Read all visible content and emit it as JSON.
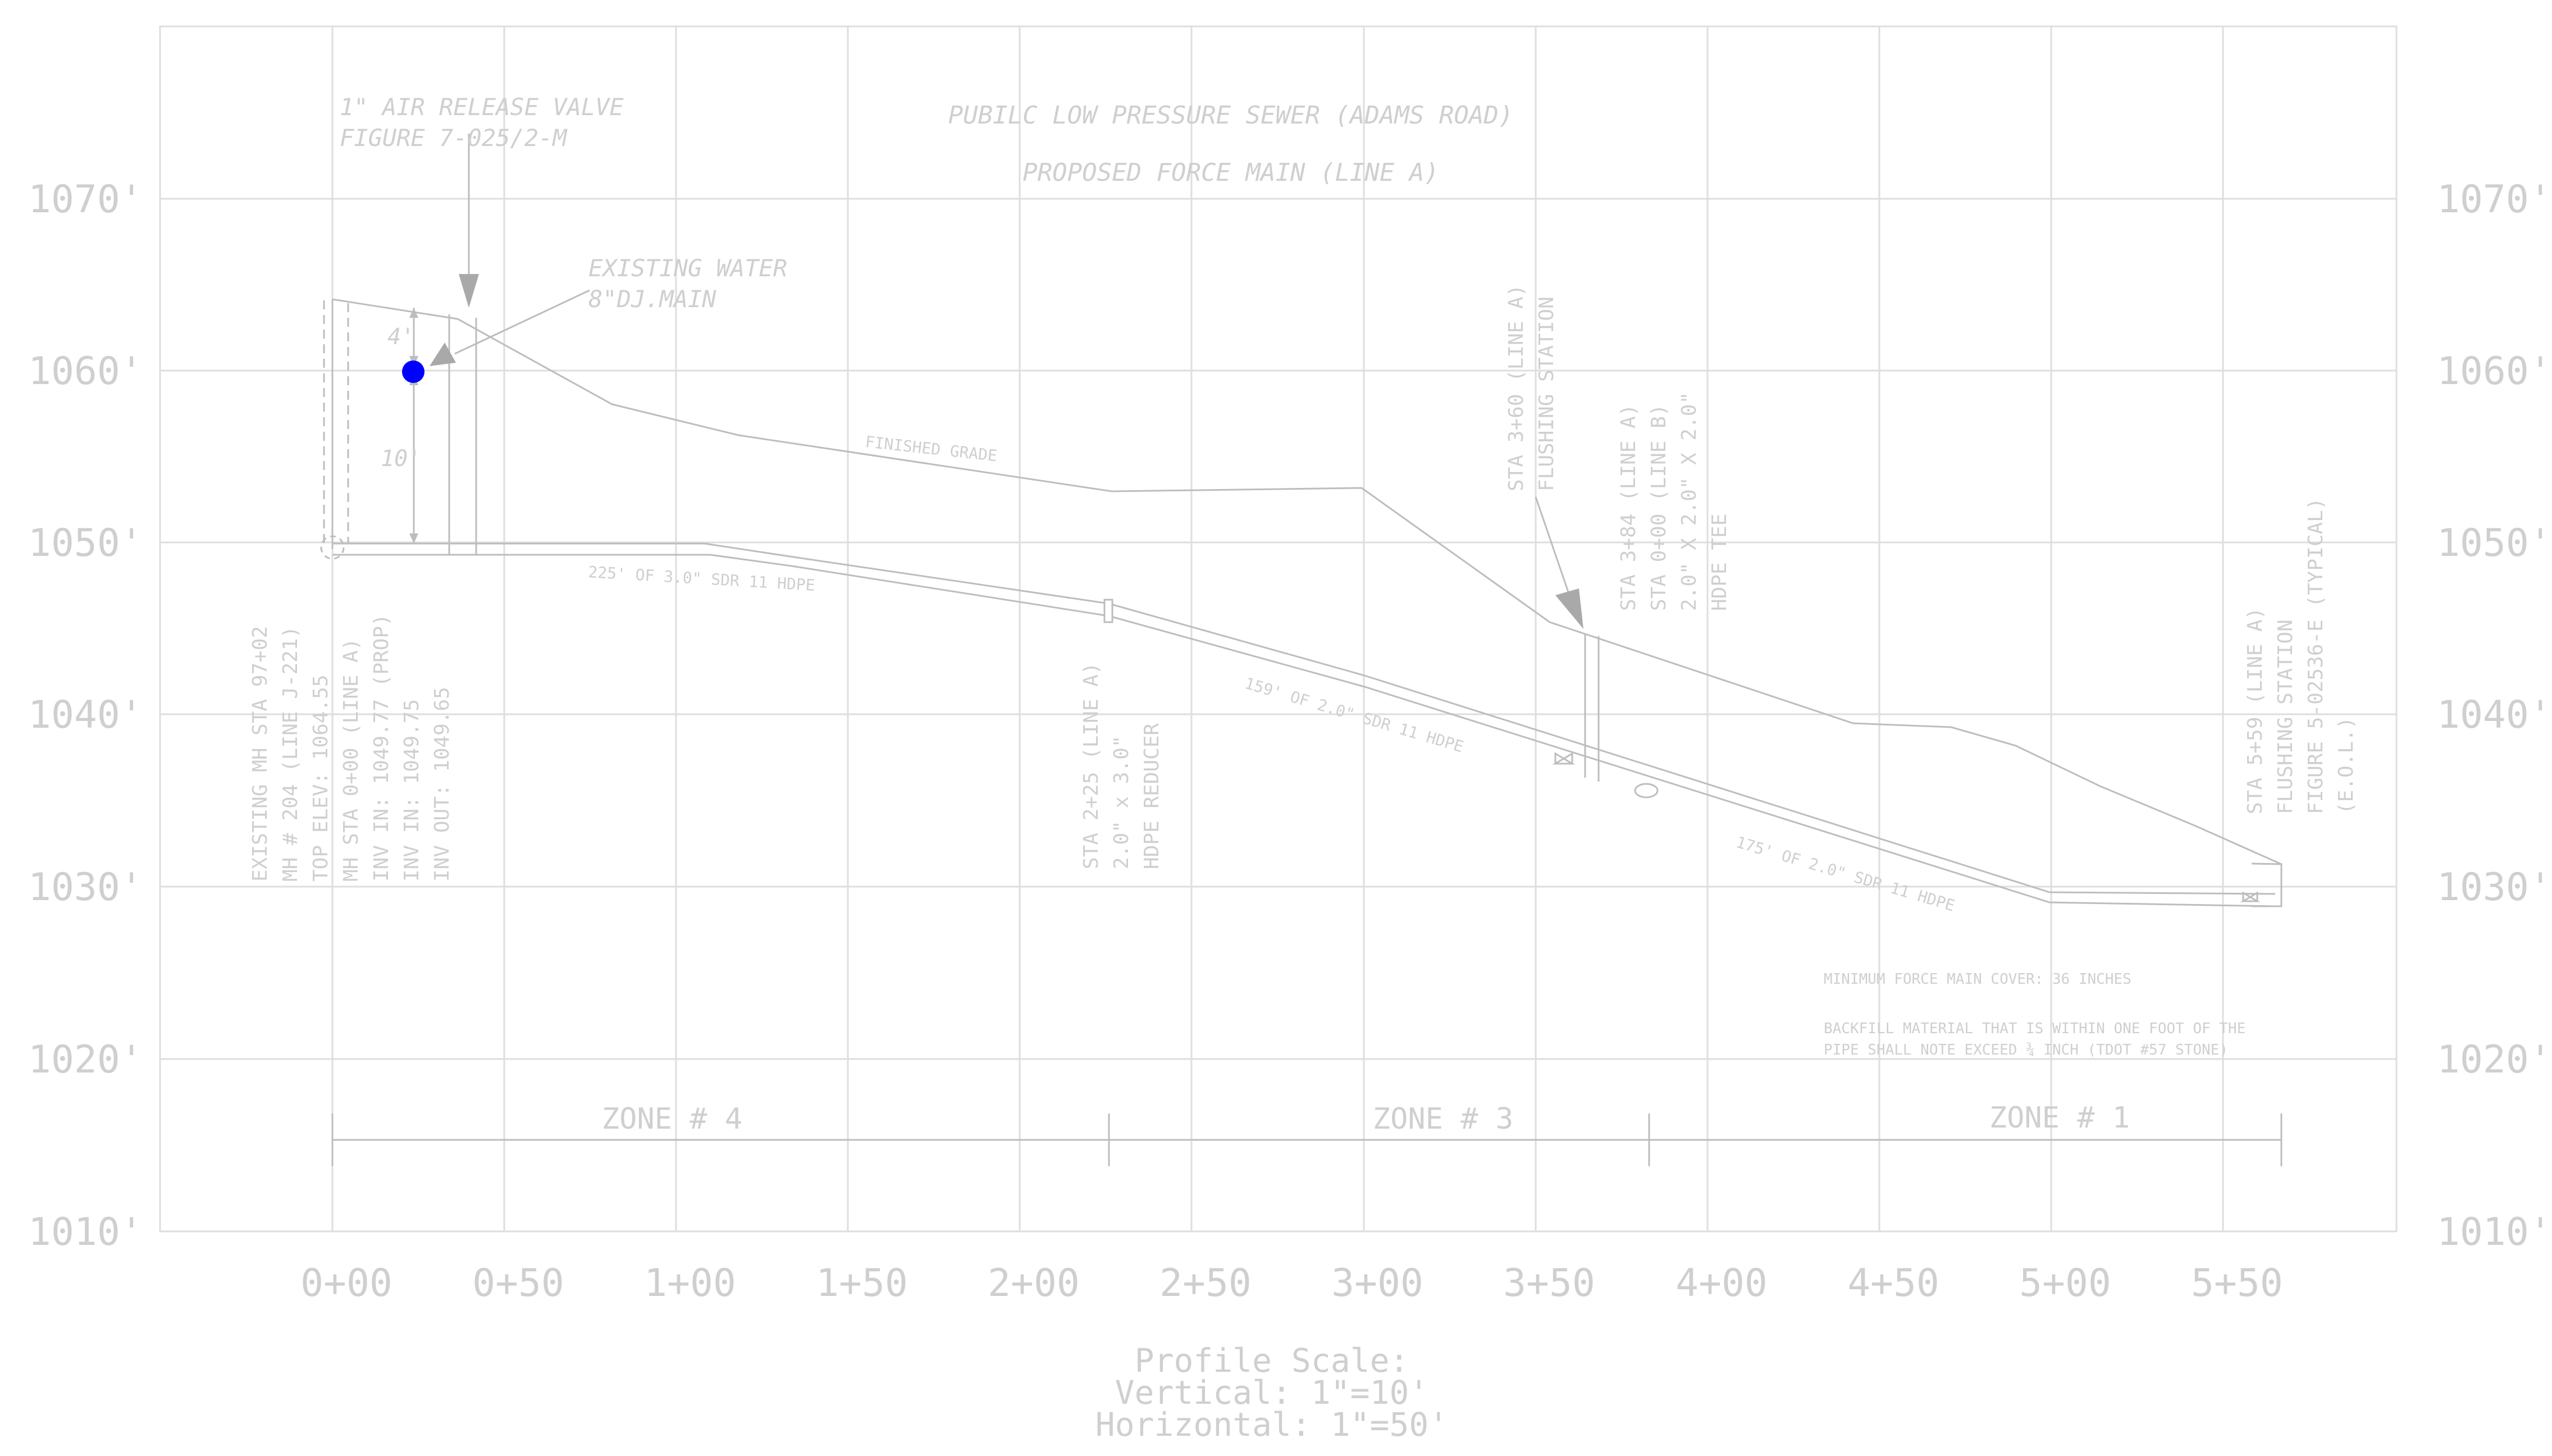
{
  "elevation_labels": [
    "1070'",
    "1060'",
    "1050'",
    "1040'",
    "1030'",
    "1020'",
    "1010'"
  ],
  "station_labels": [
    "0+00",
    "0+50",
    "1+00",
    "1+50",
    "2+00",
    "2+50",
    "3+00",
    "3+50",
    "4+00",
    "4+50",
    "5+00",
    "5+50"
  ],
  "titles": {
    "line1": "PUBILC LOW PRESSURE SEWER (ADAMS ROAD)",
    "line2": "PROPOSED FORCE MAIN (LINE A)"
  },
  "air_valve": {
    "line1": "1\" AIR RELEASE VALVE",
    "line2": "FIGURE 7-025/2-M"
  },
  "water_main": {
    "line1": "EXISTING WATER",
    "line2": "8\"DJ.MAIN"
  },
  "dims": {
    "upper": "4'",
    "lower": "10'"
  },
  "finished_grade": "FINISHED GRADE",
  "pipe_labels": {
    "seg1": "225' OF 3.0\" SDR 11 HDPE",
    "seg2": "159' OF 2.0\" SDR 11 HDPE",
    "seg3": "175' OF 2.0\" SDR 11 HDPE"
  },
  "manhole_note": [
    "EXISTING MH STA 97+02",
    "MH # 204 (LINE J-221)",
    "TOP ELEV: 1064.55",
    "MH STA 0+00 (LINE A)",
    "INV IN: 1049.77 (PROP)",
    "INV IN: 1049.75",
    "INV OUT: 1049.65"
  ],
  "reducer_note": [
    "STA 2+25 (LINE A)",
    "2.0\" x 3.0\"",
    "HDPE REDUCER"
  ],
  "flush1_note": [
    "STA 3+60 (LINE A)",
    "FLUSHING STATION"
  ],
  "tee_note": [
    "STA 3+84 (LINE A)",
    "STA 0+00 (LINE B)",
    "2.0\" X 2.0\" X 2.0\"",
    "HDPE TEE"
  ],
  "flush2_note": [
    "STA 5+59 (LINE A)",
    "FLUSHING STATION",
    "FIGURE 5-02536-E (TYPICAL)",
    "(E.O.L.)"
  ],
  "notes": {
    "cover": "MINIMUM FORCE MAIN COVER: 36 INCHES",
    "backfill1": "BACKFILL MATERIAL THAT IS WITHIN ONE FOOT OF THE",
    "backfill2": "PIPE SHALL NOTE EXCEED ¾ INCH (TDOT #57 STONE)"
  },
  "zones": [
    "ZONE # 4",
    "ZONE # 3",
    "ZONE # 1"
  ],
  "scale": {
    "line1": "Profile Scale:",
    "line2": "Vertical: 1\"=10'",
    "line3": "Horizontal: 1\"=50'"
  },
  "colors": {
    "text": "#cfcfcf",
    "grid": "#dedede",
    "linework": "#bdbdbd",
    "arrow": "#a9a9a9",
    "water_main_marker": "#0000ff"
  }
}
